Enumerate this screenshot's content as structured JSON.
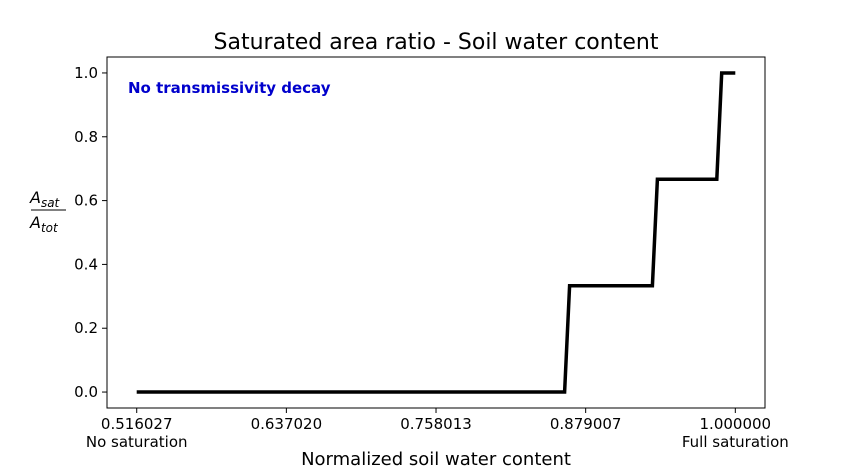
{
  "chart_data": {
    "type": "line",
    "title": "Saturated area ratio - Soil water content",
    "xlabel": "Normalized soil water content",
    "ylabel": {
      "numerator": "A",
      "numerator_sub": "sat",
      "denominator": "A",
      "denominator_sub": "tot"
    },
    "annotation": "No transmissivity decay",
    "xlim": [
      0.492,
      1.024
    ],
    "ylim": [
      -0.05,
      1.05
    ],
    "x_ticks": [
      {
        "value": 0.516027,
        "label": "0.516027",
        "sublabel": "No saturation"
      },
      {
        "value": 0.63702,
        "label": "0.637020",
        "sublabel": ""
      },
      {
        "value": 0.758013,
        "label": "0.758013",
        "sublabel": ""
      },
      {
        "value": 0.879007,
        "label": "0.879007",
        "sublabel": ""
      },
      {
        "value": 1.0,
        "label": "1.000000",
        "sublabel": "Full saturation"
      }
    ],
    "y_ticks": [
      {
        "value": 0.0,
        "label": "0.0"
      },
      {
        "value": 0.2,
        "label": "0.2"
      },
      {
        "value": 0.4,
        "label": "0.4"
      },
      {
        "value": 0.6,
        "label": "0.6"
      },
      {
        "value": 0.8,
        "label": "0.8"
      },
      {
        "value": 1.0,
        "label": "1.0"
      }
    ],
    "series": [
      {
        "color": "#000000",
        "x": [
          0.516027,
          0.862,
          0.866,
          0.933,
          0.937,
          0.985,
          0.989,
          1.0
        ],
        "y": [
          0.0,
          0.0,
          0.3333,
          0.3333,
          0.6667,
          0.6667,
          1.0,
          1.0
        ]
      }
    ],
    "grid": false
  }
}
